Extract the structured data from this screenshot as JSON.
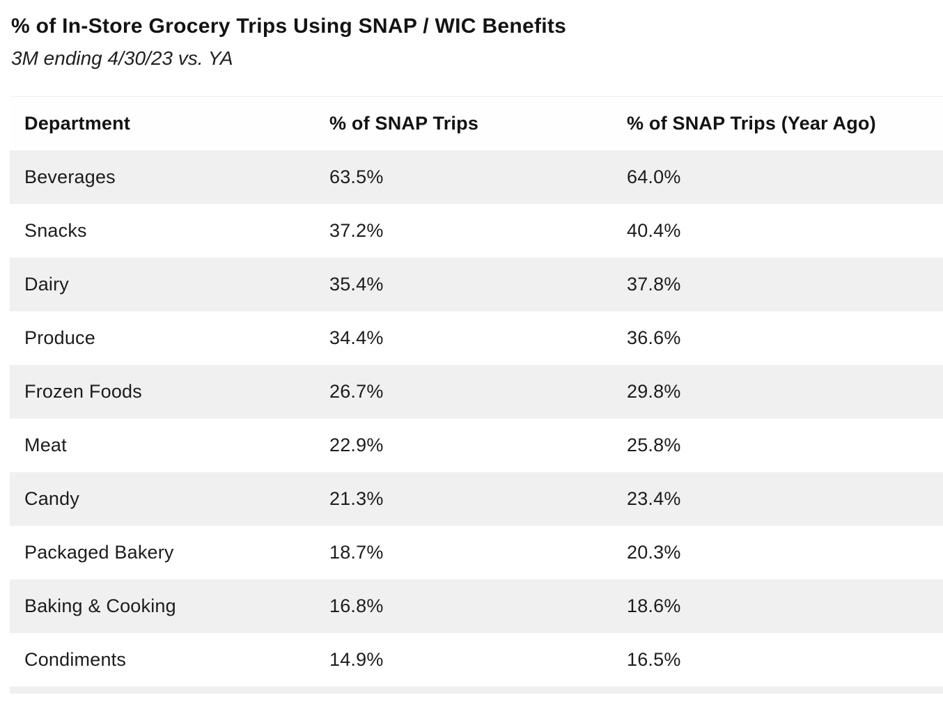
{
  "page": {
    "title": "% of In-Store Grocery Trips Using SNAP / WIC Benefits",
    "subtitle": "3M ending 4/30/23 vs. YA"
  },
  "table": {
    "columns": [
      "Department",
      "% of SNAP Trips",
      "% of SNAP Trips (Year Ago)"
    ],
    "rows": [
      {
        "cells": [
          "Beverages",
          "63.5%",
          "64.0%"
        ]
      },
      {
        "cells": [
          "Snacks",
          "37.2%",
          "40.4%"
        ]
      },
      {
        "cells": [
          "Dairy",
          "35.4%",
          "37.8%"
        ]
      },
      {
        "cells": [
          "Produce",
          "34.4%",
          "36.6%"
        ]
      },
      {
        "cells": [
          "Frozen Foods",
          "26.7%",
          "29.8%"
        ]
      },
      {
        "cells": [
          "Meat",
          "22.9%",
          "25.8%"
        ]
      },
      {
        "cells": [
          "Candy",
          "21.3%",
          "23.4%"
        ]
      },
      {
        "cells": [
          "Packaged Bakery",
          "18.7%",
          "20.3%"
        ]
      },
      {
        "cells": [
          "Baking & Cooking",
          "16.8%",
          "18.6%"
        ]
      },
      {
        "cells": [
          "Condiments",
          "14.9%",
          "16.5%"
        ]
      }
    ]
  },
  "colors": {
    "row_stripe": "#f0f0f0",
    "background": "#ffffff",
    "text": "#1a1a1a"
  },
  "chart_data": {
    "type": "table",
    "title": "% of In-Store Grocery Trips Using SNAP / WIC Benefits",
    "subtitle": "3M ending 4/30/23 vs. YA",
    "columns": [
      "Department",
      "% of SNAP Trips",
      "% of SNAP Trips (Year Ago)"
    ],
    "categories": [
      "Beverages",
      "Snacks",
      "Dairy",
      "Produce",
      "Frozen Foods",
      "Meat",
      "Candy",
      "Packaged Bakery",
      "Baking & Cooking",
      "Condiments"
    ],
    "series": [
      {
        "name": "% of SNAP Trips",
        "values": [
          63.5,
          37.2,
          35.4,
          34.4,
          26.7,
          22.9,
          21.3,
          18.7,
          16.8,
          14.9
        ]
      },
      {
        "name": "% of SNAP Trips (Year Ago)",
        "values": [
          64.0,
          40.4,
          37.8,
          36.6,
          29.8,
          25.8,
          23.4,
          20.3,
          18.6,
          16.5
        ]
      }
    ],
    "layout": {
      "striped_rows": true,
      "gridlines": false,
      "value_format": "percent_1dp"
    }
  }
}
